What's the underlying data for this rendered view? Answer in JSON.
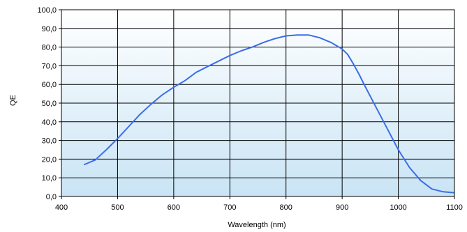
{
  "chart_data": {
    "type": "line",
    "title": "",
    "xlabel": "Wavelength (nm)",
    "ylabel": "QE",
    "xlim": [
      400,
      1100
    ],
    "ylim": [
      0,
      100
    ],
    "x_ticks": [
      400,
      500,
      600,
      700,
      800,
      900,
      1000,
      1100
    ],
    "x_tick_labels": [
      "400",
      "500",
      "600",
      "700",
      "800",
      "900",
      "1000",
      "1100"
    ],
    "y_ticks": [
      0,
      10,
      20,
      30,
      40,
      50,
      60,
      70,
      80,
      90,
      100
    ],
    "y_tick_labels": [
      "0,0",
      "10,0",
      "20,0",
      "30,0",
      "40,0",
      "50,0",
      "60,0",
      "70,0",
      "80,0",
      "90,0",
      "100,0"
    ],
    "grid": true,
    "legend": "none",
    "colors": {
      "line": "#3a6ee8",
      "grid": "#000000",
      "bg_top": "#ffffff",
      "bg_bottom": "#c9e4f5"
    },
    "series": [
      {
        "x": [
          440,
          460,
          480,
          500,
          520,
          540,
          560,
          580,
          600,
          620,
          640,
          660,
          680,
          700,
          720,
          740,
          760,
          780,
          800,
          820,
          840,
          860,
          880,
          900,
          910,
          920,
          930,
          940,
          960,
          980,
          1000,
          1020,
          1040,
          1060,
          1080,
          1100
        ],
        "y": [
          17,
          19.5,
          25,
          31,
          37.5,
          44,
          49.5,
          54.5,
          58.5,
          62,
          66.5,
          69.5,
          72.5,
          75.5,
          78,
          80,
          82.5,
          84.5,
          86,
          86.5,
          86.5,
          85,
          82.5,
          79,
          76,
          71,
          65.5,
          59.5,
          48,
          36.5,
          25,
          15.5,
          8.5,
          4,
          2.5,
          2
        ]
      }
    ]
  }
}
